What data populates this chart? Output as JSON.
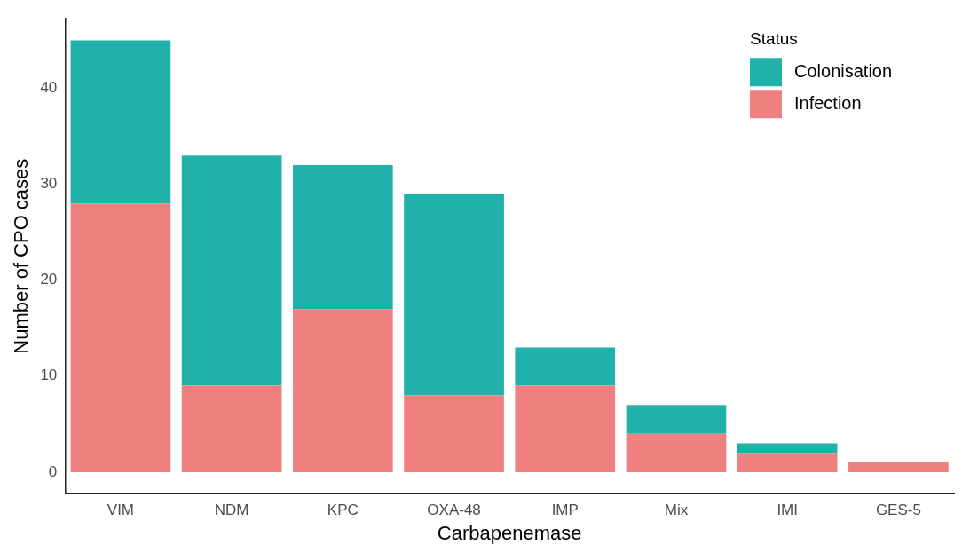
{
  "chart_data": {
    "type": "bar",
    "xlabel": "Carbapenemase",
    "ylabel": "Number of CPO cases",
    "legend_title": "Status",
    "categories": [
      "VIM",
      "NDM",
      "KPC",
      "OXA-48",
      "IMP",
      "Mix",
      "IMI",
      "GES-5"
    ],
    "series": [
      {
        "name": "Infection",
        "color": "#f08080",
        "values": [
          28,
          9,
          17,
          8,
          9,
          4,
          2,
          1
        ]
      },
      {
        "name": "Colonisation",
        "color": "#20b2aa",
        "values": [
          17,
          24,
          15,
          21,
          4,
          3,
          1,
          0
        ]
      }
    ],
    "stacked": true,
    "ylim": [
      -2.25,
      47.25
    ],
    "yticks": [
      0,
      10,
      20,
      30,
      40
    ],
    "grid": false,
    "legend": "top right"
  }
}
